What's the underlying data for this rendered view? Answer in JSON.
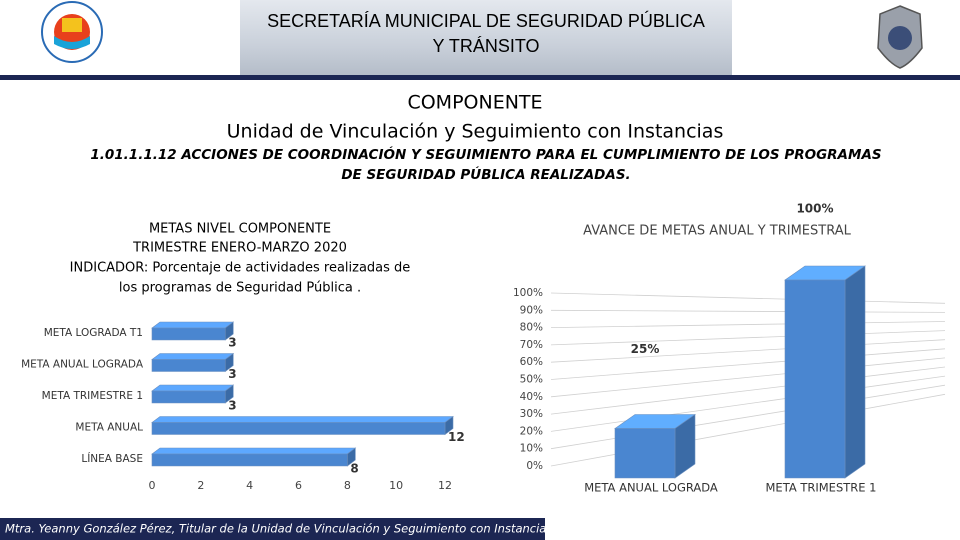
{
  "header": {
    "title_lines": [
      "SECRETARÍA MUNICIPAL DE SEGURIDAD PÚBLICA",
      "Y TRÁNSITO"
    ]
  },
  "heading": "COMPONENTE",
  "subheading": "Unidad de Vinculación y Seguimiento con Instancias",
  "activity_lines": [
    "1.01.1.1.12 ACCIONES DE COORDINACIÓN Y SEGUIMIENTO PARA EL CUMPLIMIENTO DE LOS PROGRAMAS",
    "DE SEGURIDAD PÚBLICA REALIZADAS."
  ],
  "footer": "Mtra. Yeanny González Pérez, Titular de la Unidad de Vinculación y Seguimiento con Instancias.",
  "chart_data": [
    {
      "type": "bar",
      "orientation": "horizontal",
      "title_lines": [
        "METAS NIVEL COMPONENTE",
        "TRIMESTRE ENERO-MARZO 2020",
        "INDICADOR:  Porcentaje de actividades realizadas de",
        "los programas de Seguridad Pública ."
      ],
      "categories": [
        "META LOGRADA T1",
        "META ANUAL LOGRADA",
        "META TRIMESTRE 1",
        "META ANUAL",
        "LÍNEA BASE"
      ],
      "values": [
        3,
        3,
        3,
        12,
        8
      ],
      "color": "#4a86d0",
      "xlim": [
        0,
        12
      ],
      "xticks": [
        0,
        2,
        4,
        6,
        8,
        10,
        12
      ]
    },
    {
      "type": "bar",
      "orientation": "vertical",
      "title": "AVANCE DE METAS ANUAL Y TRIMESTRAL",
      "categories": [
        "META ANUAL LOGRADA",
        "META TRIMESTRE 1"
      ],
      "values": [
        25,
        100
      ],
      "value_labels": [
        "25%",
        "100%"
      ],
      "color": "#4a86d0",
      "ylim": [
        0,
        100
      ],
      "yticks": [
        {
          "value": 0,
          "label": "0%"
        },
        {
          "value": 10,
          "label": "10%"
        },
        {
          "value": 20,
          "label": "20%"
        },
        {
          "value": 30,
          "label": "30%"
        },
        {
          "value": 40,
          "label": "40%"
        },
        {
          "value": 50,
          "label": "50%"
        },
        {
          "value": 60,
          "label": "60%"
        },
        {
          "value": 70,
          "label": "70%"
        },
        {
          "value": 80,
          "label": "80%"
        },
        {
          "value": 90,
          "label": "90%"
        },
        {
          "value": 100,
          "label": "100%"
        }
      ],
      "grid": true
    }
  ]
}
